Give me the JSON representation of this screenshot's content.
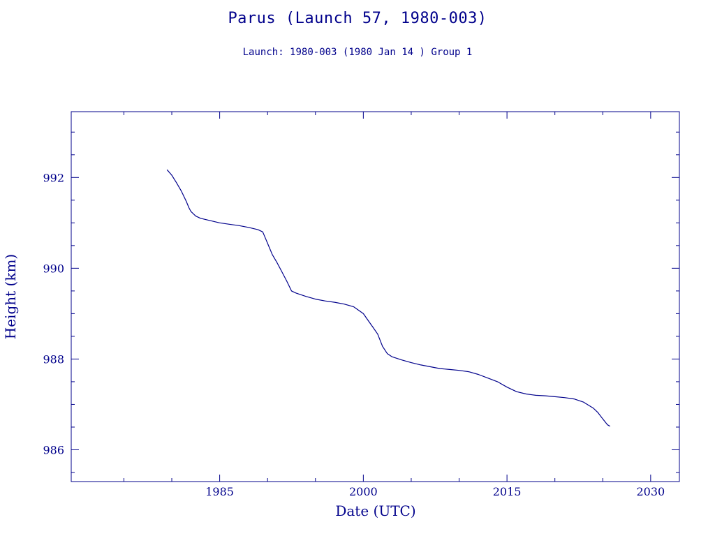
{
  "page": {
    "title": "Parus (Launch 57, 1980-003)",
    "subtitle": "Launch: 1980-003  (1980 Jan 14 )  Group 1"
  },
  "colors": {
    "ink": "#00008b",
    "background": "#ffffff"
  },
  "chart_data": {
    "type": "line",
    "title": "Parus (Launch 57, 1980-003)",
    "subtitle": "Launch: 1980-003  (1980 Jan 14 )  Group 1",
    "xlabel": "Date (UTC)",
    "ylabel": "Height (km)",
    "xlim": [
      1969.5,
      2033
    ],
    "ylim": [
      985.3,
      993.45
    ],
    "xticks": [
      {
        "value": 1985,
        "label": "1985"
      },
      {
        "value": 2000,
        "label": "2000"
      },
      {
        "value": 2015,
        "label": "2015"
      },
      {
        "value": 2030,
        "label": "2030"
      }
    ],
    "yticks": [
      {
        "value": 986,
        "label": "986"
      },
      {
        "value": 988,
        "label": "988"
      },
      {
        "value": 990,
        "label": "990"
      },
      {
        "value": 992,
        "label": "992"
      }
    ],
    "grid": false,
    "legend": "none",
    "series": [
      {
        "color": "#00008b",
        "points": [
          [
            1979.5,
            992.17
          ],
          [
            1980.0,
            992.05
          ],
          [
            1980.5,
            991.88
          ],
          [
            1981.0,
            991.7
          ],
          [
            1981.5,
            991.48
          ],
          [
            1981.8,
            991.33
          ],
          [
            1982.0,
            991.25
          ],
          [
            1982.5,
            991.15
          ],
          [
            1983.0,
            991.1
          ],
          [
            1984.0,
            991.05
          ],
          [
            1985.0,
            991.0
          ],
          [
            1986.0,
            990.97
          ],
          [
            1987.0,
            990.94
          ],
          [
            1988.0,
            990.9
          ],
          [
            1989.0,
            990.85
          ],
          [
            1989.5,
            990.8
          ],
          [
            1990.0,
            990.55
          ],
          [
            1990.5,
            990.3
          ],
          [
            1991.0,
            990.12
          ],
          [
            1991.5,
            989.92
          ],
          [
            1992.0,
            989.72
          ],
          [
            1992.5,
            989.5
          ],
          [
            1993.0,
            989.45
          ],
          [
            1994.0,
            989.38
          ],
          [
            1995.0,
            989.32
          ],
          [
            1996.0,
            989.28
          ],
          [
            1997.0,
            989.25
          ],
          [
            1998.0,
            989.21
          ],
          [
            1999.0,
            989.15
          ],
          [
            2000.0,
            989.0
          ],
          [
            2000.5,
            988.85
          ],
          [
            2001.0,
            988.7
          ],
          [
            2001.5,
            988.55
          ],
          [
            2002.0,
            988.28
          ],
          [
            2002.5,
            988.12
          ],
          [
            2003.0,
            988.05
          ],
          [
            2004.0,
            987.98
          ],
          [
            2005.0,
            987.92
          ],
          [
            2006.0,
            987.87
          ],
          [
            2007.0,
            987.83
          ],
          [
            2008.0,
            987.79
          ],
          [
            2009.0,
            987.77
          ],
          [
            2010.0,
            987.75
          ],
          [
            2011.0,
            987.72
          ],
          [
            2012.0,
            987.66
          ],
          [
            2013.0,
            987.58
          ],
          [
            2014.0,
            987.5
          ],
          [
            2015.0,
            987.38
          ],
          [
            2016.0,
            987.28
          ],
          [
            2017.0,
            987.23
          ],
          [
            2018.0,
            987.2
          ],
          [
            2019.0,
            987.19
          ],
          [
            2020.0,
            987.17
          ],
          [
            2021.0,
            987.15
          ],
          [
            2022.0,
            987.12
          ],
          [
            2023.0,
            987.05
          ],
          [
            2024.0,
            986.92
          ],
          [
            2024.5,
            986.82
          ],
          [
            2025.0,
            986.68
          ],
          [
            2025.5,
            986.55
          ],
          [
            2025.75,
            986.52
          ]
        ]
      }
    ]
  }
}
